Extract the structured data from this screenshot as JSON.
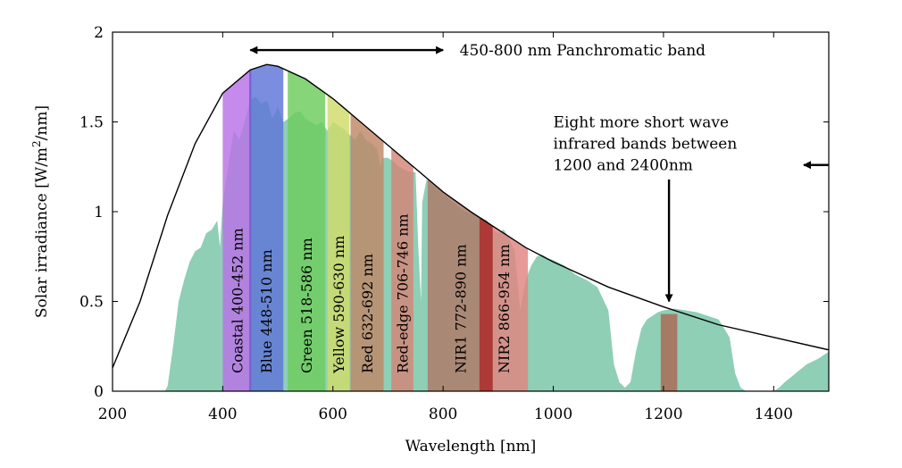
{
  "chart_data": {
    "type": "area",
    "xlabel": "Wavelength [nm]",
    "ylabel": "Solar irradiance [W/m²/nm]",
    "ylabel_parts": {
      "before": "Solar irradiance [W/m",
      "sup": "2",
      "after": "/nm]"
    },
    "xlim": [
      200,
      1500
    ],
    "ylim": [
      0,
      2
    ],
    "xticks": [
      200,
      400,
      600,
      800,
      1000,
      1200,
      1400
    ],
    "yticks": [
      0,
      0.5,
      1,
      1.5,
      2
    ],
    "ytick_labels": [
      "0",
      "0.5",
      "1",
      "1.5",
      "2"
    ],
    "grid": false,
    "colors": {
      "spectrum": "#8ecfb6",
      "curve": "#000000"
    },
    "blackbody_curve": {
      "x": [
        200,
        250,
        300,
        350,
        400,
        450,
        480,
        500,
        550,
        600,
        650,
        700,
        750,
        800,
        850,
        900,
        950,
        1000,
        1100,
        1200,
        1300,
        1400,
        1500
      ],
      "y": [
        0.13,
        0.5,
        0.98,
        1.38,
        1.66,
        1.79,
        1.82,
        1.81,
        1.74,
        1.63,
        1.5,
        1.37,
        1.24,
        1.11,
        1.0,
        0.9,
        0.8,
        0.72,
        0.58,
        0.47,
        0.37,
        0.3,
        0.23
      ]
    },
    "measured_spectrum": {
      "x": [
        200,
        295,
        300,
        310,
        320,
        330,
        340,
        350,
        360,
        370,
        380,
        390,
        395,
        400,
        410,
        420,
        430,
        440,
        450,
        460,
        470,
        480,
        490,
        500,
        510,
        520,
        530,
        540,
        550,
        560,
        570,
        580,
        590,
        600,
        610,
        620,
        630,
        640,
        650,
        660,
        670,
        680,
        686,
        690,
        700,
        710,
        720,
        740,
        750,
        755,
        760,
        762,
        765,
        770,
        780,
        800,
        820,
        840,
        860,
        880,
        890,
        900,
        910,
        920,
        930,
        940,
        950,
        960,
        970,
        980,
        990,
        1000,
        1020,
        1040,
        1060,
        1080,
        1100,
        1110,
        1120,
        1130,
        1140,
        1150,
        1160,
        1170,
        1180,
        1190,
        1200,
        1220,
        1240,
        1260,
        1280,
        1300,
        1320,
        1330,
        1340,
        1350,
        1360,
        1400,
        1410,
        1420,
        1440,
        1460,
        1480,
        1500
      ],
      "y": [
        0,
        0,
        0.03,
        0.25,
        0.5,
        0.62,
        0.72,
        0.78,
        0.8,
        0.88,
        0.9,
        0.95,
        0.8,
        1.05,
        1.25,
        1.45,
        1.4,
        1.5,
        1.62,
        1.64,
        1.6,
        1.62,
        1.52,
        1.58,
        1.5,
        1.52,
        1.55,
        1.56,
        1.52,
        1.5,
        1.48,
        1.5,
        1.45,
        1.5,
        1.48,
        1.46,
        1.43,
        1.4,
        1.45,
        1.4,
        1.38,
        1.35,
        1.25,
        1.3,
        1.3,
        1.28,
        1.25,
        1.22,
        1.22,
        0.8,
        0.5,
        1.05,
        1.1,
        1.18,
        1.15,
        1.1,
        1.05,
        1.0,
        0.98,
        0.95,
        0.9,
        0.88,
        0.9,
        0.85,
        0.78,
        0.45,
        0.62,
        0.7,
        0.75,
        0.76,
        0.74,
        0.73,
        0.7,
        0.65,
        0.62,
        0.58,
        0.45,
        0.15,
        0.05,
        0.02,
        0.05,
        0.22,
        0.35,
        0.4,
        0.42,
        0.44,
        0.45,
        0.46,
        0.45,
        0.44,
        0.42,
        0.4,
        0.3,
        0.1,
        0.02,
        0,
        0,
        0,
        0.02,
        0.05,
        0.1,
        0.15,
        0.18,
        0.22
      ]
    },
    "bands": [
      {
        "label": "Coastal 400-452 nm",
        "start": 400,
        "end": 452,
        "color": "#b870e6"
      },
      {
        "label": "Blue 448-510 nm",
        "start": 448,
        "end": 510,
        "color": "#5e74d8"
      },
      {
        "label": "Green 518-586 nm",
        "start": 518,
        "end": 586,
        "color": "#6ccc5c"
      },
      {
        "label": "Yellow 590-630 nm",
        "start": 590,
        "end": 630,
        "color": "#cfdc6a"
      },
      {
        "label": "Red 632-692 nm",
        "start": 632,
        "end": 692,
        "color": "#be8868"
      },
      {
        "label": "Red-edge 706-746 nm",
        "start": 706,
        "end": 746,
        "color": "#d48478"
      },
      {
        "label": "NIR1 772-890 nm",
        "start": 772,
        "end": 890,
        "color": "#b07868"
      },
      {
        "label": "NIR2 866-954 nm",
        "start": 866,
        "end": 954,
        "color": "#e08480"
      }
    ],
    "band_overlaps": [
      {
        "start": 448,
        "end": 452,
        "color": "#7a62d6"
      },
      {
        "start": 866,
        "end": 890,
        "color": "#a83230"
      }
    ],
    "swir_band": {
      "start": 1195,
      "end": 1225,
      "color": "#a8705c"
    },
    "annotations": {
      "panchromatic": {
        "text": "450-800 nm  Panchromatic band",
        "arrow_from": 450,
        "arrow_to": 800,
        "arrow_y": 1.9,
        "text_x": 830
      },
      "swir": {
        "lines": [
          "Eight more short wave",
          "infrared bands between",
          "1200 and 2400nm"
        ],
        "text_x": 1000,
        "line_y": [
          1.5,
          1.38,
          1.26
        ],
        "horizontal_arrow": {
          "from": 1500,
          "to": 1660,
          "y": 1.26
        },
        "vertical_arrow": {
          "x": 1210,
          "from": 1.18,
          "to": 0.5
        }
      }
    }
  }
}
